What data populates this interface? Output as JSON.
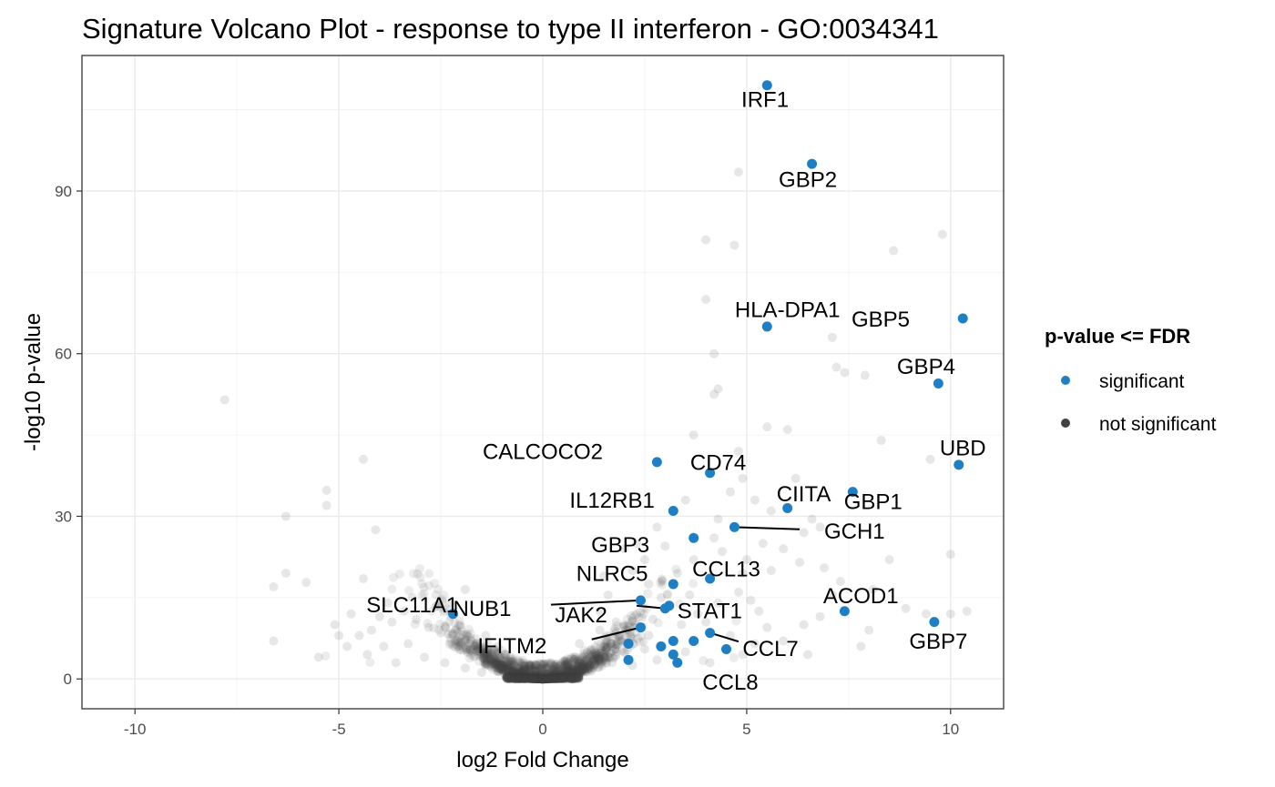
{
  "chart_data": {
    "type": "scatter",
    "title": "Signature Volcano Plot - response to type II interferon - GO:0034341",
    "xlabel": "log2 Fold Change",
    "ylabel": "-log10 p-value",
    "xlim": [
      -11.3,
      11.3
    ],
    "ylim": [
      -5.5,
      115
    ],
    "x_ticks": [
      -10,
      -5,
      0,
      5,
      10
    ],
    "x_tick_labels": [
      "-10",
      "-5",
      "0",
      "5",
      "10"
    ],
    "y_ticks": [
      0,
      30,
      60,
      90
    ],
    "y_tick_labels": [
      "0",
      "30",
      "60",
      "90"
    ],
    "grid": true,
    "legend": {
      "title": "p-value <= FDR",
      "position": "right",
      "entries": [
        {
          "label": "significant",
          "color": "#1f7fc4"
        },
        {
          "label": "not significant",
          "color": "#424242"
        }
      ]
    },
    "colors": {
      "significant": "#1f7fc4",
      "not_significant": "#424242"
    },
    "series": [
      {
        "name": "significant",
        "points": [
          {
            "gene": "IRF1",
            "x": 5.5,
            "y": 109.5,
            "label": "IRF1"
          },
          {
            "gene": "GBP2",
            "x": 6.6,
            "y": 95.0,
            "label": "GBP2"
          },
          {
            "gene": "HLA-DPA1",
            "x": 5.5,
            "y": 65.0,
            "label": "HLA-DPA1"
          },
          {
            "gene": "GBP5",
            "x": 10.3,
            "y": 66.5,
            "label": "GBP5"
          },
          {
            "gene": "GBP4",
            "x": 9.7,
            "y": 54.5,
            "label": "GBP4"
          },
          {
            "gene": "UBD",
            "x": 10.2,
            "y": 39.5,
            "label": "UBD"
          },
          {
            "gene": "GBP1",
            "x": 7.6,
            "y": 34.5,
            "label": "GBP1"
          },
          {
            "gene": "CALCOCO2",
            "x": 2.8,
            "y": 40.0,
            "label": "CALCOCO2"
          },
          {
            "gene": "CD74",
            "x": 4.1,
            "y": 38.0,
            "label": "CD74"
          },
          {
            "gene": "IL12RB1",
            "x": 3.2,
            "y": 31.0,
            "label": "IL12RB1"
          },
          {
            "gene": "CIITA",
            "x": 6.0,
            "y": 31.5,
            "label": "CIITA"
          },
          {
            "gene": "GCH1",
            "x": 4.7,
            "y": 28.0,
            "label": "GCH1"
          },
          {
            "gene": "GBP3",
            "x": 3.7,
            "y": 26.0,
            "label": "GBP3"
          },
          {
            "gene": "CCL13",
            "x": 4.1,
            "y": 18.5,
            "label": "CCL13"
          },
          {
            "gene": "NLRC5",
            "x": 3.2,
            "y": 17.5,
            "label": "NLRC5"
          },
          {
            "gene": "NUB1",
            "x": 2.4,
            "y": 14.5,
            "label": "NUB1"
          },
          {
            "gene": "JAK2",
            "x": 3.0,
            "y": 13.0,
            "label": "JAK2"
          },
          {
            "gene": "STAT1",
            "x": 3.1,
            "y": 13.5,
            "label": "STAT1"
          },
          {
            "gene": "ACOD1",
            "x": 7.4,
            "y": 12.5,
            "label": "ACOD1"
          },
          {
            "gene": "SLC11A1",
            "x": -2.2,
            "y": 12.0,
            "label": "SLC11A1"
          },
          {
            "gene": "GBP7",
            "x": 9.6,
            "y": 10.5,
            "label": "GBP7"
          },
          {
            "gene": "IFITM2",
            "x": 2.4,
            "y": 9.5,
            "label": "IFITM2"
          },
          {
            "gene": "CCL7",
            "x": 4.1,
            "y": 8.5,
            "label": "CCL7"
          },
          {
            "gene": "CCL8",
            "x": 3.3,
            "y": 3.0,
            "label": "CCL8"
          },
          {
            "gene": "",
            "x": 3.2,
            "y": 7.0,
            "label": ""
          },
          {
            "gene": "",
            "x": 3.7,
            "y": 7.0,
            "label": ""
          },
          {
            "gene": "",
            "x": 4.5,
            "y": 5.5,
            "label": ""
          },
          {
            "gene": "",
            "x": 2.9,
            "y": 6.0,
            "label": ""
          },
          {
            "gene": "",
            "x": 3.2,
            "y": 4.5,
            "label": ""
          },
          {
            "gene": "",
            "x": 2.1,
            "y": 3.5,
            "label": ""
          },
          {
            "gene": "",
            "x": 2.1,
            "y": 6.5,
            "label": ""
          }
        ]
      },
      {
        "name": "not significant",
        "points": [
          [
            -7.8,
            51.5
          ],
          [
            -4.4,
            40.5
          ],
          [
            -5.3,
            34.8
          ],
          [
            -5.3,
            32.0
          ],
          [
            -6.3,
            30.0
          ],
          [
            -4.1,
            27.5
          ],
          [
            -6.3,
            19.5
          ],
          [
            -6.6,
            17.0
          ],
          [
            -5.8,
            17.8
          ],
          [
            -4.4,
            18.5
          ],
          [
            -6.6,
            7.0
          ],
          [
            -5.5,
            4.0
          ],
          [
            4.8,
            93.5
          ],
          [
            4.0,
            81.0
          ],
          [
            4.7,
            80.0
          ],
          [
            9.8,
            82.0
          ],
          [
            8.6,
            79.0
          ],
          [
            4.0,
            70.0
          ],
          [
            4.2,
            60.0
          ],
          [
            7.1,
            63.0
          ],
          [
            7.2,
            57.5
          ],
          [
            7.4,
            56.5
          ],
          [
            7.9,
            56.0
          ],
          [
            4.2,
            52.5
          ],
          [
            4.3,
            53.5
          ],
          [
            5.5,
            46.5
          ],
          [
            6.0,
            46.0
          ],
          [
            3.7,
            45.0
          ],
          [
            4.8,
            42.0
          ],
          [
            8.3,
            44.0
          ],
          [
            9.5,
            40.5
          ],
          [
            6.2,
            37.0
          ],
          [
            4.9,
            37.0
          ],
          [
            5.2,
            33.0
          ],
          [
            4.6,
            34.5
          ],
          [
            5.6,
            31.0
          ],
          [
            4.3,
            29.5
          ],
          [
            6.6,
            29.5
          ],
          [
            6.8,
            28.0
          ],
          [
            6.4,
            27.0
          ],
          [
            5.4,
            25.0
          ],
          [
            5.9,
            24.0
          ],
          [
            4.4,
            23.5
          ],
          [
            5.0,
            22.0
          ],
          [
            6.3,
            21.5
          ],
          [
            5.6,
            20.0
          ],
          [
            4.9,
            19.5
          ],
          [
            6.9,
            20.5
          ],
          [
            7.3,
            18.0
          ],
          [
            8.5,
            22.0
          ],
          [
            10.0,
            23.0
          ],
          [
            8.1,
            16.5
          ],
          [
            7.1,
            15.5
          ],
          [
            8.9,
            13.0
          ],
          [
            10.0,
            12.0
          ],
          [
            10.4,
            12.5
          ],
          [
            9.4,
            12.0
          ],
          [
            6.8,
            11.5
          ],
          [
            8.0,
            9.0
          ],
          [
            7.8,
            6.0
          ],
          [
            6.4,
            10.0
          ],
          [
            6.5,
            4.5
          ],
          [
            5.1,
            14.5
          ],
          [
            4.8,
            16.0
          ],
          [
            5.3,
            12.5
          ],
          [
            5.5,
            9.5
          ],
          [
            4.6,
            8.0
          ],
          [
            5.9,
            7.0
          ],
          [
            5.2,
            6.5
          ],
          [
            4.9,
            4.5
          ],
          [
            3.7,
            22.0
          ],
          [
            3.3,
            19.5
          ],
          [
            2.2,
            20.0
          ],
          [
            2.6,
            17.5
          ],
          [
            2.5,
            22.0
          ],
          [
            3.0,
            24.5
          ],
          [
            2.3,
            25.0
          ],
          [
            1.4,
            12.5
          ],
          [
            1.6,
            15.5
          ],
          [
            1.9,
            8.0
          ],
          [
            1.2,
            5.5
          ],
          [
            1.7,
            3.0
          ],
          [
            1.0,
            2.5
          ],
          [
            0.6,
            1.5
          ],
          [
            0.3,
            0.8
          ],
          [
            -0.3,
            0.8
          ],
          [
            -0.6,
            1.5
          ],
          [
            -1.0,
            2.5
          ],
          [
            -1.3,
            4.0
          ],
          [
            -1.8,
            5.5
          ],
          [
            -2.1,
            7.0
          ],
          [
            -2.5,
            8.5
          ],
          [
            -2.8,
            9.5
          ],
          [
            -3.1,
            11.0
          ],
          [
            -3.4,
            12.5
          ],
          [
            -3.7,
            10.5
          ],
          [
            -4.0,
            11.5
          ],
          [
            -4.2,
            9.0
          ],
          [
            -4.5,
            8.0
          ],
          [
            -3.9,
            6.0
          ],
          [
            -3.3,
            6.5
          ],
          [
            -2.9,
            4.0
          ],
          [
            -2.4,
            3.0
          ],
          [
            -1.9,
            2.0
          ],
          [
            -1.5,
            1.2
          ],
          [
            -4.8,
            6.0
          ],
          [
            -4.3,
            4.5
          ],
          [
            -3.6,
            3.0
          ],
          [
            -5.0,
            8.0
          ],
          [
            -3.2,
            15.0
          ],
          [
            -2.6,
            13.5
          ],
          [
            -1.9,
            16.5
          ],
          [
            -2.3,
            14.0
          ],
          [
            -3.8,
            14.0
          ],
          [
            -4.7,
            12.0
          ],
          [
            -5.1,
            10.0
          ],
          [
            -1.1,
            6.0
          ],
          [
            -0.8,
            4.0
          ],
          [
            -1.4,
            8.0
          ],
          [
            -0.5,
            3.0
          ],
          [
            1.5,
            19.0
          ],
          [
            2.0,
            24.0
          ],
          [
            2.8,
            28.0
          ],
          [
            3.5,
            33.0
          ],
          [
            4.2,
            26.0
          ],
          [
            1.8,
            10.5
          ],
          [
            2.7,
            11.0
          ],
          [
            2.6,
            8.0
          ],
          [
            3.4,
            10.0
          ],
          [
            3.8,
            12.0
          ],
          [
            4.3,
            14.0
          ],
          [
            4.0,
            10.5
          ],
          [
            3.6,
            15.5
          ],
          [
            2.9,
            15.0
          ],
          [
            2.3,
            12.0
          ],
          [
            1.4,
            9.0
          ],
          [
            0.9,
            6.5
          ],
          [
            0.8,
            4.0
          ],
          [
            1.6,
            6.0
          ],
          [
            2.2,
            2.5
          ],
          [
            2.8,
            3.5
          ],
          [
            3.5,
            5.0
          ],
          [
            4.1,
            3.0
          ],
          [
            1.2,
            1.5
          ],
          [
            2.5,
            5.5
          ]
        ]
      }
    ],
    "labels": [
      {
        "text": "IRF1",
        "for": "IRF1"
      },
      {
        "text": "GBP2",
        "for": "GBP2"
      },
      {
        "text": "HLA-DPA1",
        "for": "HLA-DPA1"
      },
      {
        "text": "GBP5",
        "for": "GBP5"
      },
      {
        "text": "GBP4",
        "for": "GBP4"
      },
      {
        "text": "UBD",
        "for": "UBD"
      },
      {
        "text": "GBP1",
        "for": "GBP1"
      },
      {
        "text": "CALCOCO2",
        "for": "CALCOCO2"
      },
      {
        "text": "CD74",
        "for": "CD74"
      },
      {
        "text": "IL12RB1",
        "for": "IL12RB1"
      },
      {
        "text": "CIITA",
        "for": "CIITA"
      },
      {
        "text": "GCH1",
        "for": "GCH1"
      },
      {
        "text": "GBP3",
        "for": "GBP3"
      },
      {
        "text": "CCL13",
        "for": "CCL13"
      },
      {
        "text": "NLRC5",
        "for": "NLRC5"
      },
      {
        "text": "NUB1",
        "for": "NUB1"
      },
      {
        "text": "JAK2",
        "for": "JAK2"
      },
      {
        "text": "STAT1",
        "for": "STAT1"
      },
      {
        "text": "ACOD1",
        "for": "ACOD1"
      },
      {
        "text": "SLC11A1",
        "for": "SLC11A1"
      },
      {
        "text": "GBP7",
        "for": "GBP7"
      },
      {
        "text": "IFITM2",
        "for": "IFITM2"
      },
      {
        "text": "CCL7",
        "for": "CCL7"
      },
      {
        "text": "CCL8",
        "for": "CCL8"
      }
    ]
  }
}
